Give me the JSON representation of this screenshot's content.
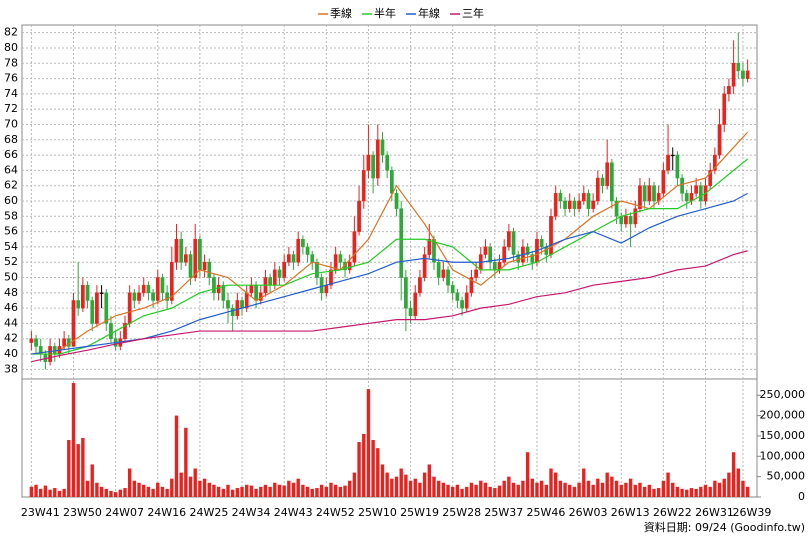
{
  "chart_data": {
    "type": "candlestick",
    "xlim": [
      -2,
      155
    ],
    "xticks": [
      {
        "value": 0,
        "label": "23W41"
      },
      {
        "value": 9,
        "label": "23W50"
      },
      {
        "value": 18,
        "label": "24W07"
      },
      {
        "value": 27,
        "label": "24W16"
      },
      {
        "value": 36,
        "label": "24W25"
      },
      {
        "value": 45,
        "label": "24W34"
      },
      {
        "value": 54,
        "label": "24W43"
      },
      {
        "value": 63,
        "label": "24W52"
      },
      {
        "value": 72,
        "label": "25W10"
      },
      {
        "value": 81,
        "label": "25W19"
      },
      {
        "value": 90,
        "label": "25W28"
      },
      {
        "value": 99,
        "label": "25W37"
      },
      {
        "value": 108,
        "label": "25W46"
      },
      {
        "value": 117,
        "label": "26W03"
      },
      {
        "value": 126,
        "label": "26W13"
      },
      {
        "value": 135,
        "label": "26W22"
      },
      {
        "value": 144,
        "label": "26W31"
      },
      {
        "value": 152,
        "label": "26W39"
      }
    ],
    "ylim": [
      37,
      83
    ],
    "yticks": [
      38,
      40,
      42,
      44,
      46,
      48,
      50,
      52,
      54,
      56,
      58,
      60,
      62,
      64,
      66,
      68,
      70,
      72,
      74,
      76,
      78,
      80,
      82
    ],
    "y2lim": [
      0,
      285000
    ],
    "y2ticks": [
      0,
      {
        "value": 50000,
        "label": "50,000"
      },
      {
        "value": 100000,
        "label": "100,000"
      },
      {
        "value": 150000,
        "label": "150,000"
      },
      {
        "value": 200000,
        "label": "200,000"
      },
      {
        "value": 250000,
        "label": "250,000"
      }
    ],
    "grid": true,
    "up_color": "#e8231f",
    "down_color": "#2fa83a",
    "volume_color": "#e8231f",
    "ohlc": [
      [
        41.5,
        43,
        40.5,
        42
      ],
      [
        42,
        42.5,
        40,
        41
      ],
      [
        41,
        42,
        39,
        40
      ],
      [
        40,
        40.5,
        38,
        39
      ],
      [
        39,
        42,
        38.5,
        41
      ],
      [
        41,
        41.5,
        39,
        40
      ],
      [
        40,
        42,
        39.5,
        41
      ],
      [
        41,
        43,
        40.5,
        42
      ],
      [
        42,
        42.5,
        40,
        41
      ],
      [
        41,
        48,
        41,
        47
      ],
      [
        47,
        52,
        45,
        46
      ],
      [
        46,
        50,
        45.5,
        49
      ],
      [
        49,
        49.5,
        46,
        47
      ],
      [
        47,
        47.5,
        43,
        44
      ],
      [
        44,
        49,
        43.5,
        48
      ],
      [
        48,
        49,
        46,
        48
      ],
      [
        48,
        48.5,
        43,
        44
      ],
      [
        44,
        45,
        41.5,
        42
      ],
      [
        42,
        43,
        40.5,
        41
      ],
      [
        41,
        43,
        40.5,
        42
      ],
      [
        42,
        45,
        41.5,
        44
      ],
      [
        44,
        49,
        43.5,
        48
      ],
      [
        48,
        48.5,
        46,
        47
      ],
      [
        47,
        49,
        46.5,
        48
      ],
      [
        48,
        50,
        47.5,
        49
      ],
      [
        49,
        49.5,
        47,
        48
      ],
      [
        48,
        48.5,
        46,
        47
      ],
      [
        47,
        51,
        46.5,
        50
      ],
      [
        50,
        50.5,
        47,
        48
      ],
      [
        48,
        49,
        46,
        47
      ],
      [
        47,
        54,
        46.5,
        52
      ],
      [
        52,
        57,
        51,
        55
      ],
      [
        55,
        56,
        51,
        52
      ],
      [
        52,
        54,
        51.5,
        53
      ],
      [
        53,
        53.5,
        49,
        50
      ],
      [
        50,
        57,
        49.5,
        55
      ],
      [
        55,
        55.5,
        50,
        51
      ],
      [
        51,
        53,
        50,
        52
      ],
      [
        52,
        52.5,
        49,
        50
      ],
      [
        50,
        50.5,
        47,
        48
      ],
      [
        48,
        50,
        47,
        49
      ],
      [
        49,
        49.5,
        46,
        47
      ],
      [
        47,
        48,
        44,
        46
      ],
      [
        46,
        46.5,
        43,
        45
      ],
      [
        45,
        48,
        44.5,
        47
      ],
      [
        47,
        47.5,
        45,
        46
      ],
      [
        46,
        49,
        45.5,
        48
      ],
      [
        48,
        50,
        47.5,
        49
      ],
      [
        49,
        49.5,
        46,
        47
      ],
      [
        47,
        49,
        46.5,
        48
      ],
      [
        48,
        51,
        47.5,
        50
      ],
      [
        50,
        50.5,
        48,
        49
      ],
      [
        49,
        52,
        48.5,
        51
      ],
      [
        51,
        51.5,
        49,
        50
      ],
      [
        50,
        53,
        49.5,
        52
      ],
      [
        52,
        54,
        51.5,
        53
      ],
      [
        53,
        53.5,
        51,
        52
      ],
      [
        52,
        56,
        51.5,
        55
      ],
      [
        55,
        55.5,
        53,
        54
      ],
      [
        54,
        54.5,
        52,
        53
      ],
      [
        53,
        53.5,
        51,
        52
      ],
      [
        52,
        52.5,
        49,
        50
      ],
      [
        50,
        50.5,
        47,
        48
      ],
      [
        48,
        50,
        47.5,
        49
      ],
      [
        49,
        52,
        48.5,
        51
      ],
      [
        51,
        54,
        50.5,
        53
      ],
      [
        53,
        53.5,
        51,
        52
      ],
      [
        52,
        52.5,
        50,
        51
      ],
      [
        51,
        53,
        50.5,
        52
      ],
      [
        52,
        58,
        51.5,
        56
      ],
      [
        56,
        62,
        55.5,
        60
      ],
      [
        60,
        66,
        59,
        64
      ],
      [
        64,
        70,
        63,
        66
      ],
      [
        66,
        66.5,
        61,
        63
      ],
      [
        63,
        70,
        62,
        68
      ],
      [
        68,
        69,
        65,
        66
      ],
      [
        66,
        66.5,
        63,
        64
      ],
      [
        64,
        64.5,
        60,
        61
      ],
      [
        61,
        61.5,
        58,
        59
      ],
      [
        59,
        60,
        47,
        50
      ],
      [
        50,
        51,
        43,
        46
      ],
      [
        46,
        47,
        44,
        45
      ],
      [
        45,
        49,
        44.5,
        48
      ],
      [
        48,
        51,
        47.5,
        50
      ],
      [
        50,
        54,
        49.5,
        53
      ],
      [
        53,
        57,
        52.5,
        55
      ],
      [
        55,
        55.5,
        51,
        52
      ],
      [
        52,
        52.5,
        49,
        50
      ],
      [
        50,
        52,
        49.5,
        51
      ],
      [
        51,
        51.5,
        48,
        49
      ],
      [
        49,
        49.5,
        47,
        48
      ],
      [
        48,
        48.5,
        46,
        47
      ],
      [
        47,
        47.5,
        45,
        46
      ],
      [
        46,
        49,
        45.5,
        48
      ],
      [
        48,
        51,
        47.5,
        50
      ],
      [
        50,
        52,
        49.5,
        51
      ],
      [
        51,
        54,
        50.5,
        53
      ],
      [
        53,
        55,
        52.5,
        54
      ],
      [
        54,
        54.5,
        51,
        52
      ],
      [
        52,
        52.5,
        50,
        51
      ],
      [
        51,
        53,
        50.5,
        52
      ],
      [
        52,
        55,
        51.5,
        54
      ],
      [
        54,
        57,
        53.5,
        56
      ],
      [
        56,
        56.5,
        52,
        53
      ],
      [
        53,
        53.5,
        51,
        52
      ],
      [
        52,
        55,
        51.5,
        54
      ],
      [
        54,
        54.5,
        52,
        53
      ],
      [
        53,
        53.5,
        51,
        52
      ],
      [
        52,
        56,
        51.5,
        55
      ],
      [
        55,
        55.5,
        53,
        54
      ],
      [
        54,
        54.5,
        52,
        53
      ],
      [
        53,
        59,
        52.5,
        58
      ],
      [
        58,
        62,
        57.5,
        61
      ],
      [
        61,
        61.5,
        59,
        60
      ],
      [
        60,
        60.5,
        58,
        59
      ],
      [
        59,
        61,
        58.5,
        60
      ],
      [
        60,
        60.5,
        58,
        59
      ],
      [
        59,
        61,
        58.5,
        60
      ],
      [
        60,
        62,
        59.5,
        61
      ],
      [
        61,
        61.5,
        58,
        59
      ],
      [
        59,
        61,
        58.5,
        60
      ],
      [
        60,
        64,
        59.5,
        63
      ],
      [
        63,
        63.5,
        61,
        62
      ],
      [
        62,
        68,
        61.5,
        65
      ],
      [
        65,
        65.5,
        59,
        60
      ],
      [
        60,
        60.5,
        57,
        58
      ],
      [
        58,
        58.5,
        56,
        57
      ],
      [
        57,
        59,
        56.5,
        58
      ],
      [
        58,
        58.5,
        54,
        57
      ],
      [
        57,
        60,
        56.5,
        59
      ],
      [
        59,
        63,
        58.5,
        62
      ],
      [
        62,
        62.5,
        59,
        60
      ],
      [
        60,
        63,
        59.5,
        62
      ],
      [
        62,
        62.5,
        59,
        60
      ],
      [
        60,
        62,
        59.5,
        61
      ],
      [
        61,
        65,
        60.5,
        64
      ],
      [
        64,
        70,
        63.5,
        66
      ],
      [
        66,
        67,
        64,
        66
      ],
      [
        66,
        66.5,
        62,
        63
      ],
      [
        63,
        63.5,
        60,
        61
      ],
      [
        61,
        61.5,
        59,
        60
      ],
      [
        60,
        62,
        59.5,
        61
      ],
      [
        61,
        63,
        60.5,
        62
      ],
      [
        62,
        62.5,
        59,
        60
      ],
      [
        60,
        63,
        59.5,
        62
      ],
      [
        62,
        65,
        61.5,
        64
      ],
      [
        64,
        67,
        63.5,
        66
      ],
      [
        66,
        72,
        65.5,
        70
      ],
      [
        70,
        75,
        69,
        74
      ],
      [
        74,
        76,
        73,
        75
      ],
      [
        75,
        81,
        74,
        78
      ],
      [
        78,
        82,
        76,
        77
      ],
      [
        77,
        78,
        75,
        76
      ],
      [
        76,
        78.5,
        75.5,
        77
      ]
    ],
    "volume": [
      25000,
      30000,
      20000,
      28000,
      18000,
      22000,
      15000,
      20000,
      140000,
      280000,
      130000,
      145000,
      40000,
      80000,
      35000,
      25000,
      20000,
      15000,
      12000,
      18000,
      22000,
      70000,
      40000,
      35000,
      30000,
      25000,
      20000,
      35000,
      25000,
      20000,
      45000,
      200000,
      60000,
      170000,
      50000,
      70000,
      40000,
      45000,
      35000,
      30000,
      25000,
      20000,
      30000,
      18000,
      22000,
      25000,
      30000,
      28000,
      20000,
      25000,
      30000,
      25000,
      35000,
      30000,
      28000,
      40000,
      35000,
      45000,
      30000,
      25000,
      20000,
      22000,
      30000,
      25000,
      35000,
      30000,
      25000,
      28000,
      40000,
      60000,
      135000,
      155000,
      265000,
      140000,
      120000,
      80000,
      60000,
      45000,
      50000,
      70000,
      55000,
      40000,
      45000,
      35000,
      60000,
      80000,
      50000,
      40000,
      35000,
      30000,
      25000,
      30000,
      20000,
      25000,
      35000,
      30000,
      40000,
      35000,
      25000,
      22000,
      28000,
      40000,
      50000,
      35000,
      30000,
      40000,
      110000,
      45000,
      35000,
      40000,
      30000,
      70000,
      60000,
      40000,
      35000,
      30000,
      25000,
      35000,
      70000,
      40000,
      30000,
      45000,
      35000,
      60000,
      50000,
      40000,
      30000,
      35000,
      45000,
      30000,
      35000,
      25000,
      30000,
      20000,
      22000,
      40000,
      60000,
      35000,
      25000,
      20000,
      18000,
      22000,
      20000,
      25000,
      30000,
      25000,
      40000,
      35000,
      45000,
      60000,
      110000,
      70000,
      40000,
      25000
    ],
    "ma_x": [
      0,
      6,
      12,
      18,
      24,
      30,
      36,
      42,
      48,
      54,
      60,
      66,
      72,
      78,
      84,
      90,
      96,
      102,
      108,
      114,
      120,
      126,
      132,
      138,
      144,
      150,
      153
    ],
    "series": [
      {
        "name": "季線",
        "color": "#e07020",
        "values": [
          40,
          40.5,
          43,
          45,
          46,
          47.5,
          51,
          50,
          47,
          49,
          52,
          51,
          55,
          62,
          57,
          51,
          49,
          52,
          53,
          55,
          58,
          60,
          59,
          62,
          63,
          67,
          69
        ]
      },
      {
        "name": "半年",
        "color": "#22cc22",
        "values": [
          40,
          40,
          41,
          43,
          45,
          46,
          48,
          49,
          49,
          49,
          50.5,
          51,
          52,
          55,
          55,
          54,
          51,
          51,
          52,
          54,
          56,
          58,
          59,
          59,
          61,
          64,
          65.5
        ]
      },
      {
        "name": "年線",
        "color": "#1f5fd0",
        "values": [
          40,
          40.5,
          41,
          41.5,
          42,
          43,
          44.5,
          45.5,
          46.5,
          47.5,
          48.5,
          49.5,
          50.5,
          52,
          52.5,
          52,
          52,
          52.5,
          53.5,
          55,
          56,
          54.5,
          56.5,
          58,
          59,
          60,
          61
        ]
      },
      {
        "name": "三年",
        "color": "#c8186e",
        "values": [
          39,
          39.8,
          40.5,
          41.3,
          42,
          42.5,
          43,
          43,
          43,
          43,
          43,
          43.5,
          44,
          44.5,
          44.5,
          45,
          46,
          46.5,
          47.5,
          48,
          49,
          49.5,
          50,
          51,
          51.5,
          53,
          53.5
        ]
      }
    ],
    "footer": "資料日期: 09/24 (Goodinfo.tw)"
  }
}
